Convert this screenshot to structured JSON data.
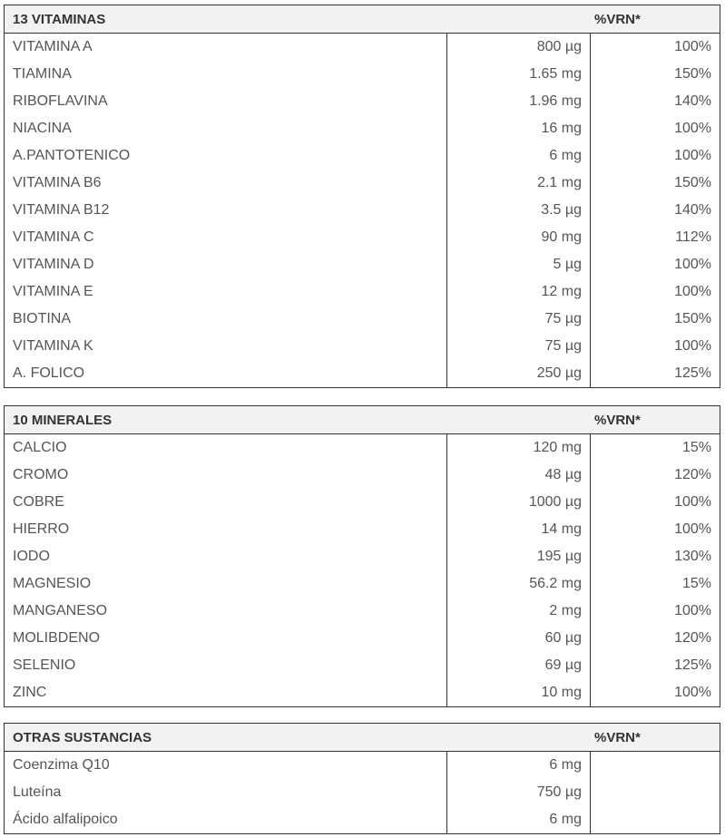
{
  "tables": [
    {
      "title": "13 VITAMINAS",
      "vrn_label": "%VRN*",
      "rows": [
        [
          "VITAMINA A",
          "800 µg",
          "100%"
        ],
        [
          "TIAMINA",
          "1.65 mg",
          "150%"
        ],
        [
          "RIBOFLAVINA",
          "1.96 mg",
          "140%"
        ],
        [
          "NIACINA",
          "16 mg",
          "100%"
        ],
        [
          "A.PANTOTENICO",
          "6 mg",
          "100%"
        ],
        [
          "VITAMINA B6",
          "2.1 mg",
          "150%"
        ],
        [
          "VITAMINA B12",
          "3.5 µg",
          "140%"
        ],
        [
          "VITAMINA C",
          "90 mg",
          "112%"
        ],
        [
          "VITAMINA D",
          "5 µg",
          "100%"
        ],
        [
          "VITAMINA E",
          "12 mg",
          "100%"
        ],
        [
          "BIOTINA",
          "75 µg",
          "150%"
        ],
        [
          "VITAMINA K",
          "75 µg",
          "100%"
        ],
        [
          "A. FOLICO",
          "250 µg",
          "125%"
        ]
      ]
    },
    {
      "title": "10 MINERALES",
      "vrn_label": "%VRN*",
      "rows": [
        [
          "CALCIO",
          "120 mg",
          "15%"
        ],
        [
          "CROMO",
          "48 µg",
          "120%"
        ],
        [
          "COBRE",
          "1000 µg",
          "100%"
        ],
        [
          "HIERRO",
          "14 mg",
          "100%"
        ],
        [
          "IODO",
          "195 µg",
          "130%"
        ],
        [
          "MAGNESIO",
          "56.2 mg",
          "15%"
        ],
        [
          "MANGANESO",
          "2 mg",
          "100%"
        ],
        [
          "MOLIBDENO",
          "60 µg",
          "120%"
        ],
        [
          "SELENIO",
          "69 µg",
          "125%"
        ],
        [
          "ZINC",
          "10 mg",
          "100%"
        ]
      ]
    },
    {
      "title": "OTRAS SUSTANCIAS",
      "vrn_label": "%VRN*",
      "rows": [
        [
          "Coenzima Q10",
          "6 mg",
          ""
        ],
        [
          "Luteína",
          "750 µg",
          ""
        ],
        [
          "Ácido alfalipoico",
          "6 mg",
          ""
        ]
      ]
    }
  ]
}
